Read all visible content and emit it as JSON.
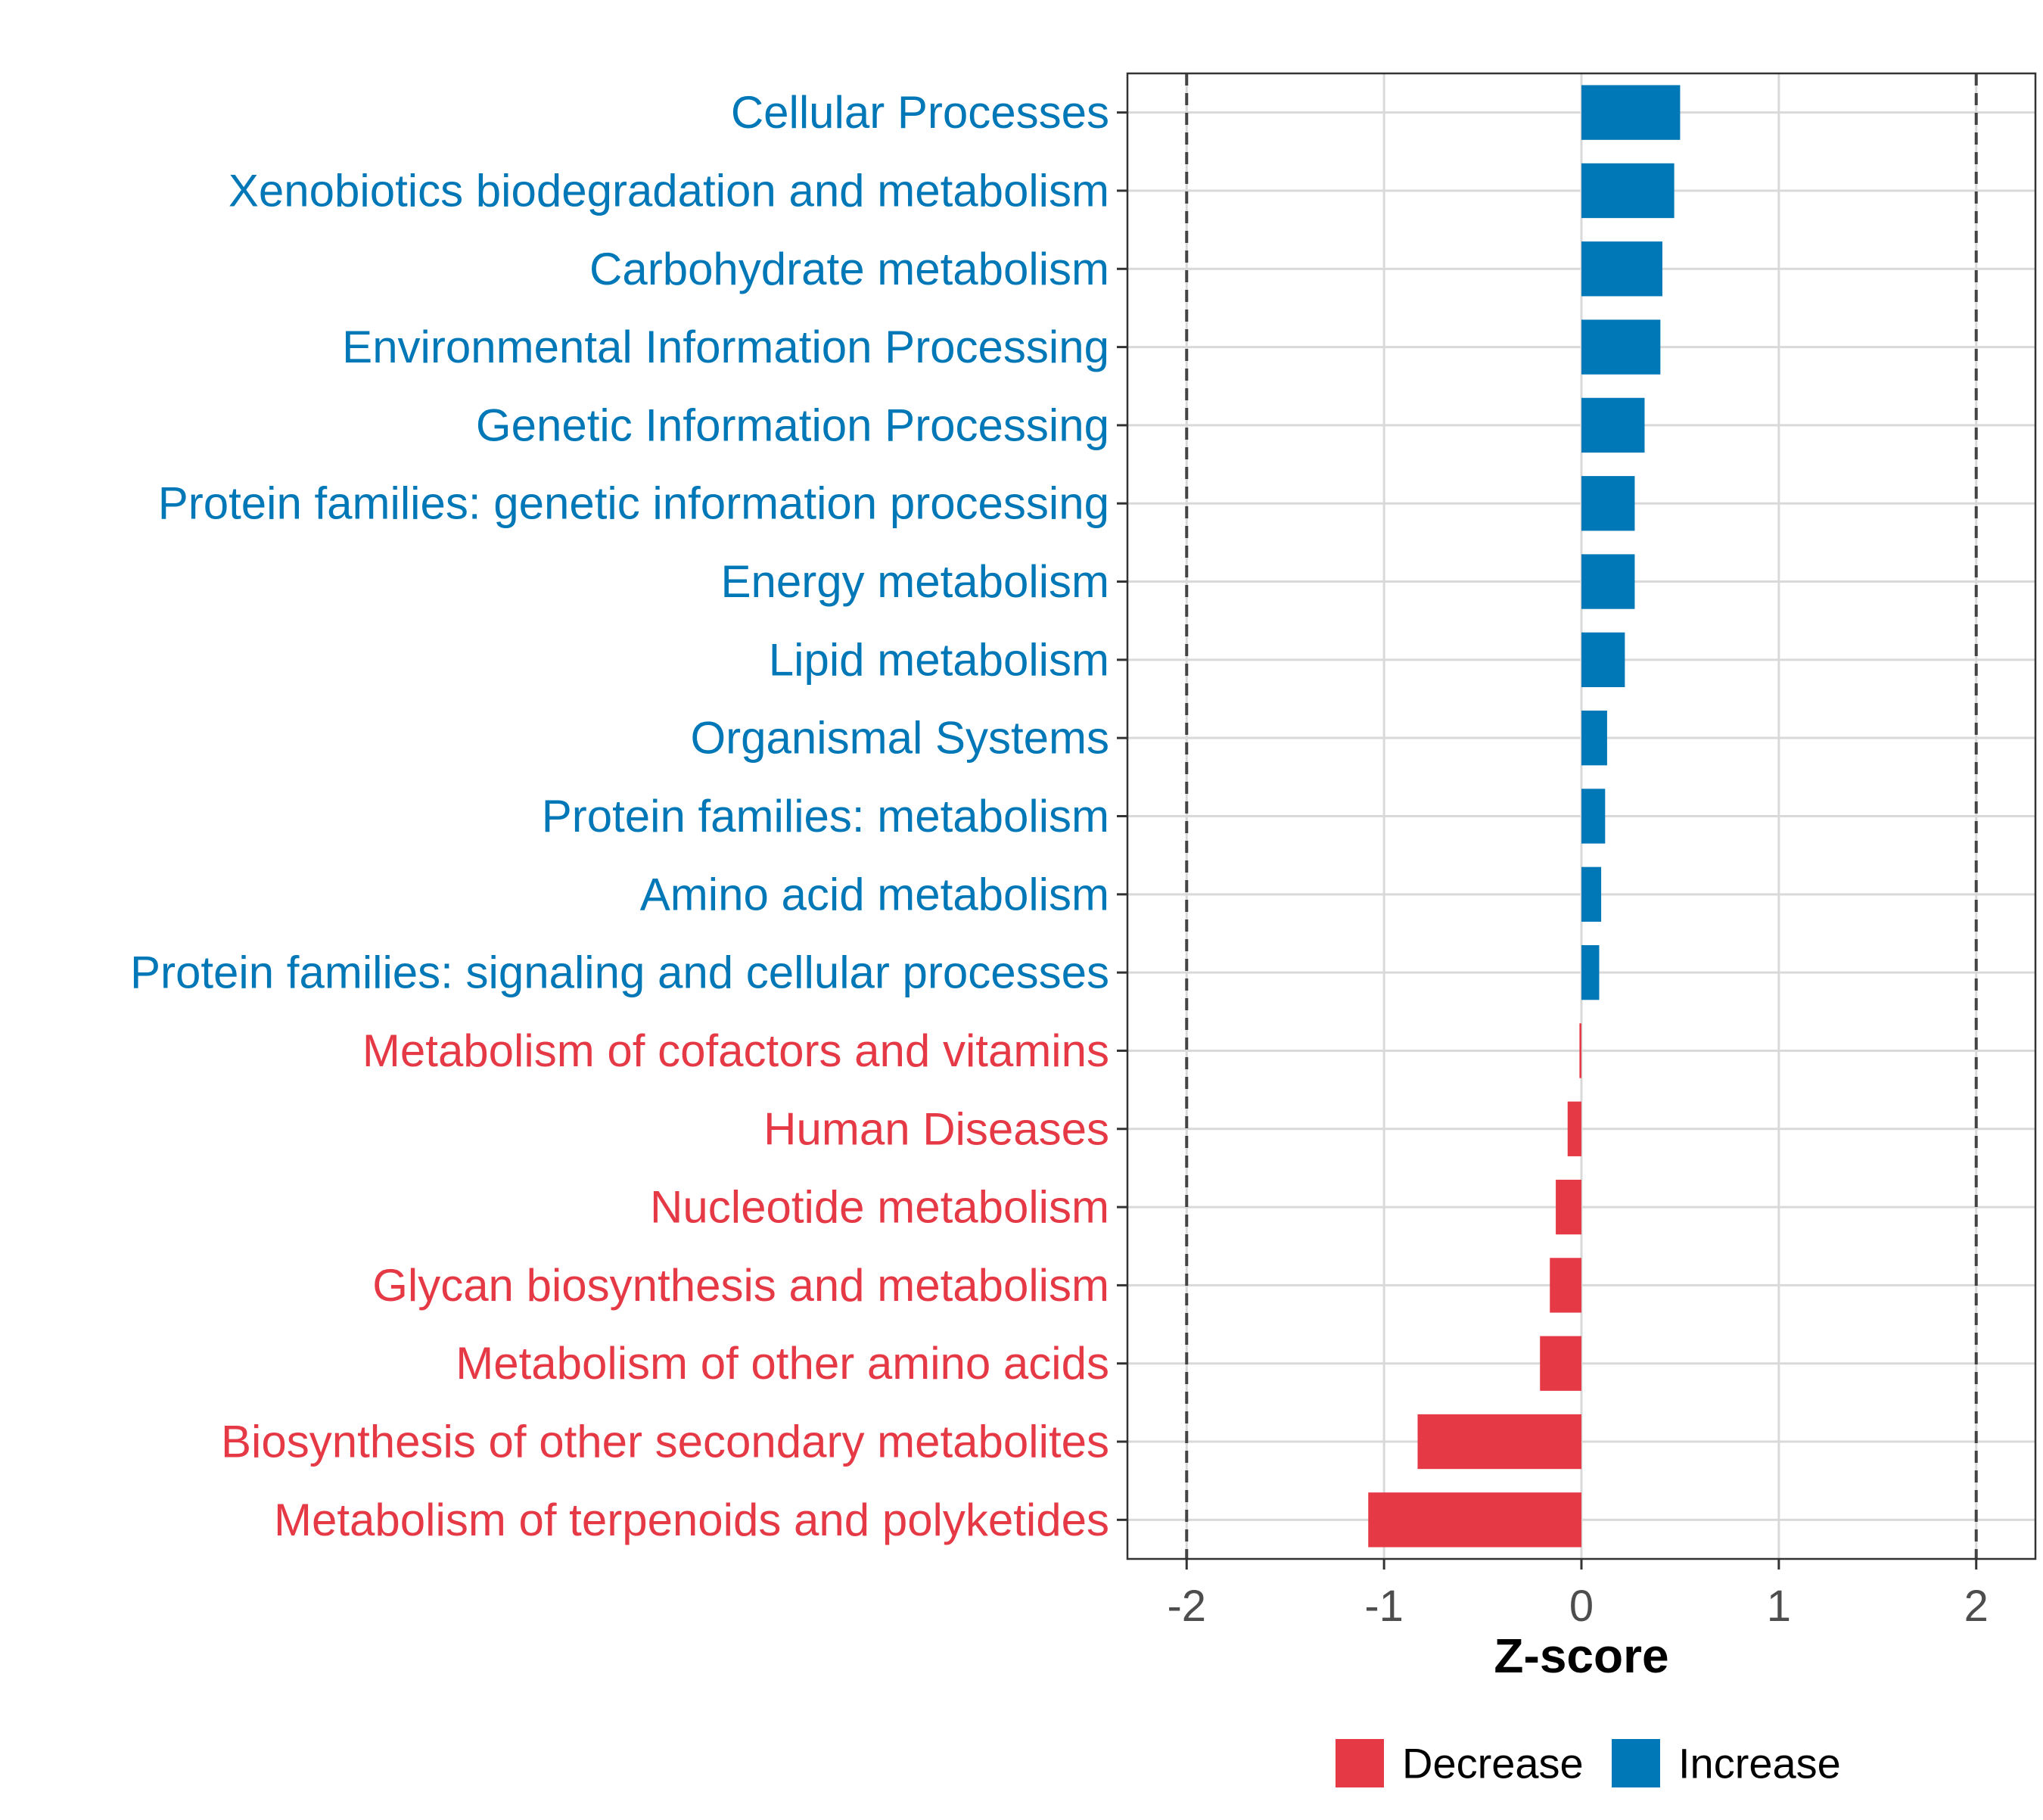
{
  "chart_data": {
    "type": "bar",
    "orientation": "horizontal",
    "title": "",
    "xlabel": "Z-score",
    "ylabel": "",
    "xlim": [
      -2.3,
      2.3
    ],
    "x_ticks": [
      -2,
      -1,
      0,
      1,
      2
    ],
    "x_tick_labels": [
      "-2",
      "-1",
      "0",
      "1",
      "2"
    ],
    "reference_lines": [
      -2,
      2
    ],
    "grid": true,
    "legend_position": "bottom",
    "colors": {
      "Decrease": "#E63946",
      "Increase": "#0077B6"
    },
    "legend": [
      {
        "label": "Decrease",
        "color": "#E63946"
      },
      {
        "label": "Increase",
        "color": "#0077B6"
      }
    ],
    "categories": [
      "Cellular Processes",
      "Xenobiotics biodegradation and metabolism",
      "Carbohydrate metabolism",
      "Environmental Information Processing",
      "Genetic Information Processing",
      "Protein families: genetic information processing",
      "Energy metabolism",
      "Lipid metabolism",
      "Organismal Systems",
      "Protein families: metabolism",
      "Amino acid metabolism",
      "Protein families: signaling and cellular processes",
      "Metabolism of cofactors and vitamins",
      "Human Diseases",
      "Nucleotide metabolism",
      "Glycan biosynthesis and metabolism",
      "Metabolism of other amino acids",
      "Biosynthesis of other secondary metabolites",
      "Metabolism of terpenoids and polyketides"
    ],
    "values": [
      0.5,
      0.47,
      0.41,
      0.4,
      0.32,
      0.27,
      0.27,
      0.22,
      0.13,
      0.12,
      0.1,
      0.09,
      -0.01,
      -0.07,
      -0.13,
      -0.16,
      -0.21,
      -0.83,
      -1.08
    ],
    "groups": [
      "Increase",
      "Increase",
      "Increase",
      "Increase",
      "Increase",
      "Increase",
      "Increase",
      "Increase",
      "Increase",
      "Increase",
      "Increase",
      "Increase",
      "Decrease",
      "Decrease",
      "Decrease",
      "Decrease",
      "Decrease",
      "Decrease",
      "Decrease"
    ]
  }
}
